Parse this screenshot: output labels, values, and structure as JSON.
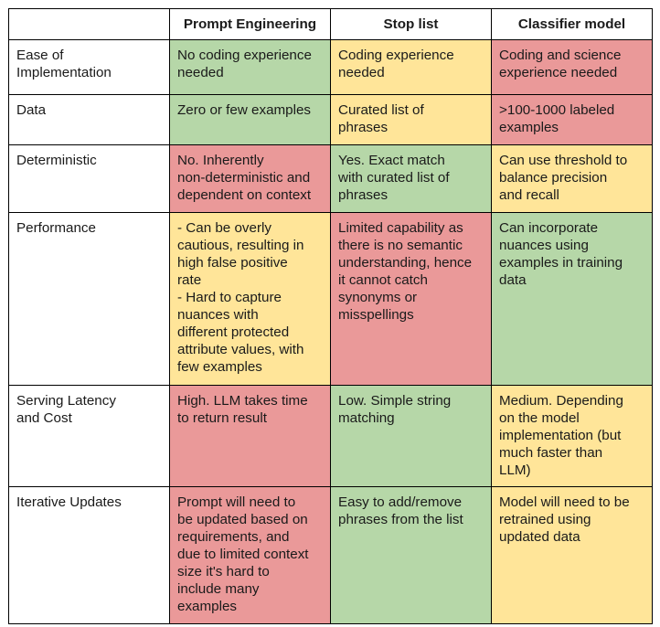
{
  "columns": [
    "Prompt Engineering",
    "Stop list",
    "Classifier model"
  ],
  "colors": {
    "green": "#b6d7a8",
    "yellow": "#ffe599",
    "red": "#ea9999"
  },
  "rows": [
    {
      "label": "Ease of\nImplementation",
      "cells": [
        {
          "text": "No coding experience\nneeded",
          "color": "green"
        },
        {
          "text": "Coding experience\nneeded",
          "color": "yellow"
        },
        {
          "text": "Coding and science\nexperience needed",
          "color": "red"
        }
      ]
    },
    {
      "label": "Data",
      "cells": [
        {
          "text": "Zero or few examples",
          "color": "green"
        },
        {
          "text": "Curated list of\nphrases",
          "color": "yellow"
        },
        {
          "text": ">100-1000 labeled\nexamples",
          "color": "red"
        }
      ]
    },
    {
      "label": "Deterministic",
      "cells": [
        {
          "text": "No. Inherently\nnon-deterministic and\ndependent on context",
          "color": "red"
        },
        {
          "text": "Yes. Exact match\nwith curated list of\nphrases",
          "color": "green"
        },
        {
          "text": "Can use threshold to\nbalance precision\nand recall",
          "color": "yellow"
        }
      ]
    },
    {
      "label": "Performance",
      "cells": [
        {
          "text": "- Can be overly\ncautious, resulting in\nhigh false positive\nrate\n- Hard to capture\nnuances with\ndifferent protected\nattribute values, with\nfew examples",
          "color": "yellow"
        },
        {
          "text": "Limited capability as\nthere is no semantic\nunderstanding, hence\nit cannot catch\nsynonyms or\nmisspellings",
          "color": "red"
        },
        {
          "text": "Can incorporate\nnuances using\nexamples in training\ndata",
          "color": "green"
        }
      ]
    },
    {
      "label": "Serving Latency\nand Cost",
      "cells": [
        {
          "text": "High. LLM takes time\nto return result",
          "color": "red"
        },
        {
          "text": "Low. Simple string\nmatching",
          "color": "green"
        },
        {
          "text": "Medium. Depending\non the model\nimplementation (but\nmuch faster than\nLLM)",
          "color": "yellow"
        }
      ]
    },
    {
      "label": "Iterative Updates",
      "cells": [
        {
          "text": "Prompt will need to\nbe updated based on\nrequirements, and\ndue to limited context\nsize it's hard to\ninclude many\nexamples",
          "color": "red"
        },
        {
          "text": "Easy to add/remove\nphrases from the list",
          "color": "green"
        },
        {
          "text": "Model will need to be\nretrained using\nupdated data",
          "color": "yellow"
        }
      ]
    }
  ]
}
